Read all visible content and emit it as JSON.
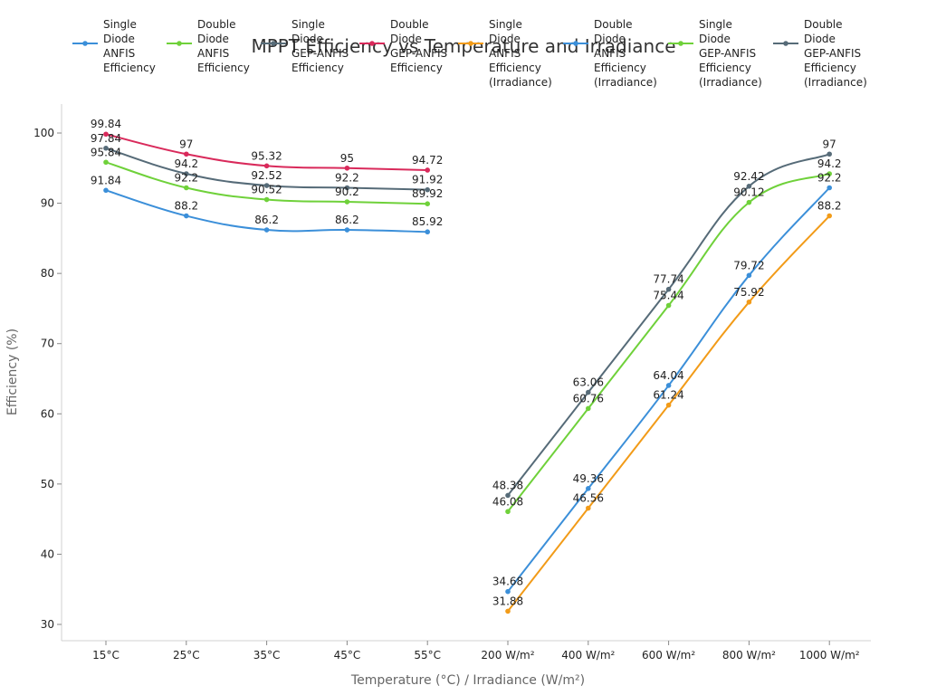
{
  "chart_data": {
    "type": "line",
    "title": "MPPT Efficiency vs Temperature and Irradiance",
    "xlabel": "Temperature (°C) / Irradiance (W/m²)",
    "ylabel": "Efficiency (%)",
    "categories": [
      "15°C",
      "25°C",
      "35°C",
      "45°C",
      "55°C",
      "200 W/m²",
      "400 W/m²",
      "600 W/m²",
      "800 W/m²",
      "1000 W/m²"
    ],
    "y_ticks": [
      30,
      40,
      50,
      60,
      70,
      80,
      90,
      100
    ],
    "ylim": [
      28,
      104
    ],
    "grid": false,
    "legend_position": "top",
    "series": [
      {
        "name": "Single Diode ANFIS Efficiency",
        "color": "#3b8fd9",
        "values": [
          91.84,
          88.2,
          86.2,
          86.2,
          85.92,
          null,
          null,
          null,
          null,
          null
        ]
      },
      {
        "name": "Double Diode ANFIS Efficiency",
        "color": "#6fd13a",
        "values": [
          95.84,
          92.2,
          90.52,
          90.2,
          89.92,
          null,
          null,
          null,
          null,
          null
        ]
      },
      {
        "name": "Single Diode GEP-ANFIS Efficiency",
        "color": "#566b78",
        "values": [
          97.84,
          94.2,
          92.52,
          92.2,
          91.92,
          null,
          null,
          null,
          null,
          null
        ]
      },
      {
        "name": "Double Diode GEP-ANFIS Efficiency",
        "color": "#d92a5b",
        "values": [
          99.84,
          97,
          95.32,
          95,
          94.72,
          null,
          null,
          null,
          null,
          null
        ]
      },
      {
        "name": "Single Diode ANFIS Efficiency (Irradiance)",
        "color": "#f29b18",
        "values": [
          null,
          null,
          null,
          null,
          null,
          31.88,
          46.56,
          61.24,
          75.92,
          88.2
        ]
      },
      {
        "name": "Double Diode ANFIS Efficiency (Irradiance)",
        "color": "#3b8fd9",
        "values": [
          null,
          null,
          null,
          null,
          null,
          34.68,
          49.36,
          64.04,
          79.72,
          92.2
        ]
      },
      {
        "name": "Single Diode GEP-ANFIS Efficiency (Irradiance)",
        "color": "#6fd13a",
        "values": [
          null,
          null,
          null,
          null,
          null,
          46.08,
          60.76,
          75.44,
          90.12,
          94.2
        ]
      },
      {
        "name": "Double Diode GEP-ANFIS Efficiency (Irradiance)",
        "color": "#566b78",
        "values": [
          null,
          null,
          null,
          null,
          null,
          48.38,
          63.06,
          77.74,
          92.42,
          97
        ]
      }
    ]
  }
}
